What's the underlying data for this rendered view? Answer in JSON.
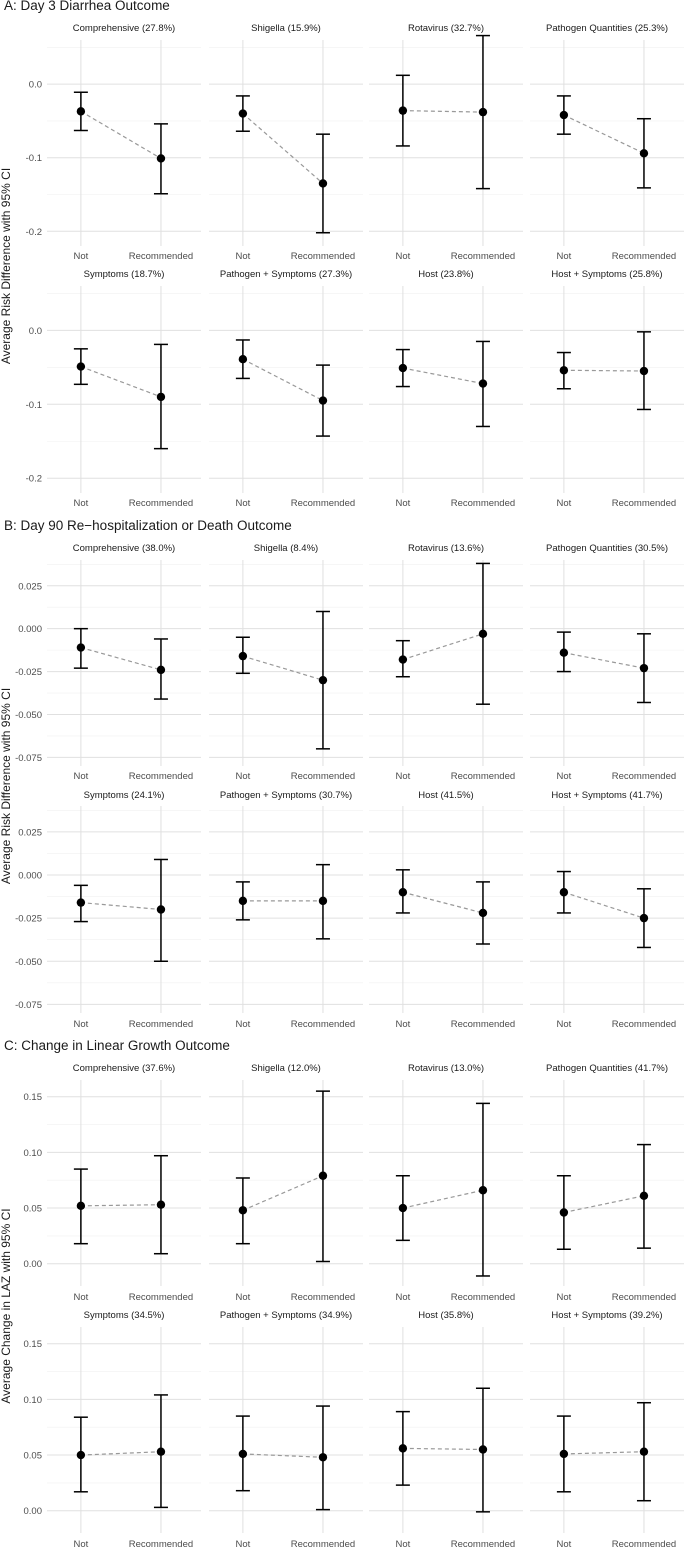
{
  "chart_data": [
    {
      "type": "scatter",
      "title": "A: Day 3 Diarrhea Outcome",
      "ylabel": "Average Risk Difference with 95% CI",
      "categories": [
        "Not",
        "Recommended"
      ],
      "ylim": [
        -0.22,
        0.06
      ],
      "yticks": [
        0.0,
        -0.1,
        -0.2
      ],
      "ytick_labels": [
        "0.0",
        "-0.1",
        "-0.2"
      ],
      "grid": true,
      "panels": [
        {
          "title": "Comprehensive (27.8%)",
          "points": [
            {
              "y": -0.037,
              "lo": -0.063,
              "hi": -0.011
            },
            {
              "y": -0.101,
              "lo": -0.149,
              "hi": -0.054
            }
          ]
        },
        {
          "title": "Shigella (15.9%)",
          "points": [
            {
              "y": -0.04,
              "lo": -0.064,
              "hi": -0.016
            },
            {
              "y": -0.135,
              "lo": -0.202,
              "hi": -0.068
            }
          ]
        },
        {
          "title": "Rotavirus (32.7%)",
          "points": [
            {
              "y": -0.036,
              "lo": -0.084,
              "hi": 0.012
            },
            {
              "y": -0.038,
              "lo": -0.142,
              "hi": 0.066
            }
          ]
        },
        {
          "title": "Pathogen Quantities (25.3%)",
          "points": [
            {
              "y": -0.042,
              "lo": -0.068,
              "hi": -0.016
            },
            {
              "y": -0.094,
              "lo": -0.141,
              "hi": -0.047
            }
          ]
        },
        {
          "title": "Symptoms (18.7%)",
          "points": [
            {
              "y": -0.049,
              "lo": -0.073,
              "hi": -0.025
            },
            {
              "y": -0.09,
              "lo": -0.16,
              "hi": -0.019
            }
          ]
        },
        {
          "title": "Pathogen + Symptoms (27.3%)",
          "points": [
            {
              "y": -0.039,
              "lo": -0.065,
              "hi": -0.013
            },
            {
              "y": -0.095,
              "lo": -0.143,
              "hi": -0.047
            }
          ]
        },
        {
          "title": "Host (23.8%)",
          "points": [
            {
              "y": -0.051,
              "lo": -0.076,
              "hi": -0.026
            },
            {
              "y": -0.072,
              "lo": -0.13,
              "hi": -0.015
            }
          ]
        },
        {
          "title": "Host + Symptoms (25.8%)",
          "points": [
            {
              "y": -0.054,
              "lo": -0.079,
              "hi": -0.03
            },
            {
              "y": -0.055,
              "lo": -0.107,
              "hi": -0.002
            }
          ]
        }
      ]
    },
    {
      "type": "scatter",
      "title": "B: Day 90 Re−hospitalization or Death Outcome",
      "ylabel": "Average Risk Difference with 95% CI",
      "categories": [
        "Not",
        "Recommended"
      ],
      "ylim": [
        -0.08,
        0.04
      ],
      "yticks": [
        0.025,
        0.0,
        -0.025,
        -0.05,
        -0.075
      ],
      "ytick_labels": [
        "0.025",
        "0.000",
        "-0.025",
        "-0.050",
        "-0.075"
      ],
      "grid": true,
      "panels": [
        {
          "title": "Comprehensive (38.0%)",
          "points": [
            {
              "y": -0.011,
              "lo": -0.023,
              "hi": 0.0
            },
            {
              "y": -0.024,
              "lo": -0.041,
              "hi": -0.006
            }
          ]
        },
        {
          "title": "Shigella (8.4%)",
          "points": [
            {
              "y": -0.016,
              "lo": -0.026,
              "hi": -0.005
            },
            {
              "y": -0.03,
              "lo": -0.07,
              "hi": 0.01
            }
          ]
        },
        {
          "title": "Rotavirus (13.6%)",
          "points": [
            {
              "y": -0.018,
              "lo": -0.028,
              "hi": -0.007
            },
            {
              "y": -0.003,
              "lo": -0.044,
              "hi": 0.038
            }
          ]
        },
        {
          "title": "Pathogen Quantities (30.5%)",
          "points": [
            {
              "y": -0.014,
              "lo": -0.025,
              "hi": -0.002
            },
            {
              "y": -0.023,
              "lo": -0.043,
              "hi": -0.003
            }
          ]
        },
        {
          "title": "Symptoms (24.1%)",
          "points": [
            {
              "y": -0.016,
              "lo": -0.027,
              "hi": -0.006
            },
            {
              "y": -0.02,
              "lo": -0.05,
              "hi": 0.009
            }
          ]
        },
        {
          "title": "Pathogen + Symptoms (30.7%)",
          "points": [
            {
              "y": -0.015,
              "lo": -0.026,
              "hi": -0.004
            },
            {
              "y": -0.015,
              "lo": -0.037,
              "hi": 0.006
            }
          ]
        },
        {
          "title": "Host (41.5%)",
          "points": [
            {
              "y": -0.01,
              "lo": -0.022,
              "hi": 0.003
            },
            {
              "y": -0.022,
              "lo": -0.04,
              "hi": -0.004
            }
          ]
        },
        {
          "title": "Host + Symptoms (41.7%)",
          "points": [
            {
              "y": -0.01,
              "lo": -0.022,
              "hi": 0.002
            },
            {
              "y": -0.025,
              "lo": -0.042,
              "hi": -0.008
            }
          ]
        }
      ]
    },
    {
      "type": "scatter",
      "title": "C: Change in Linear Growth Outcome",
      "ylabel": "Average Change in LAZ with 95% CI",
      "categories": [
        "Not",
        "Recommended"
      ],
      "ylim": [
        -0.02,
        0.165
      ],
      "yticks": [
        0.15,
        0.1,
        0.05,
        0.0
      ],
      "ytick_labels": [
        "0.15",
        "0.10",
        "0.05",
        "0.00"
      ],
      "grid": true,
      "panels": [
        {
          "title": "Comprehensive (37.6%)",
          "points": [
            {
              "y": 0.052,
              "lo": 0.018,
              "hi": 0.085
            },
            {
              "y": 0.053,
              "lo": 0.009,
              "hi": 0.097
            }
          ]
        },
        {
          "title": "Shigella (12.0%)",
          "points": [
            {
              "y": 0.048,
              "lo": 0.018,
              "hi": 0.077
            },
            {
              "y": 0.079,
              "lo": 0.002,
              "hi": 0.155
            }
          ]
        },
        {
          "title": "Rotavirus (13.0%)",
          "points": [
            {
              "y": 0.05,
              "lo": 0.021,
              "hi": 0.079
            },
            {
              "y": 0.066,
              "lo": -0.011,
              "hi": 0.144
            }
          ]
        },
        {
          "title": "Pathogen Quantities (41.7%)",
          "points": [
            {
              "y": 0.046,
              "lo": 0.013,
              "hi": 0.079
            },
            {
              "y": 0.061,
              "lo": 0.014,
              "hi": 0.107
            }
          ]
        },
        {
          "title": "Symptoms (34.5%)",
          "points": [
            {
              "y": 0.05,
              "lo": 0.017,
              "hi": 0.084
            },
            {
              "y": 0.053,
              "lo": 0.003,
              "hi": 0.104
            }
          ]
        },
        {
          "title": "Pathogen + Symptoms (34.9%)",
          "points": [
            {
              "y": 0.051,
              "lo": 0.018,
              "hi": 0.085
            },
            {
              "y": 0.048,
              "lo": 0.001,
              "hi": 0.094
            }
          ]
        },
        {
          "title": "Host (35.8%)",
          "points": [
            {
              "y": 0.056,
              "lo": 0.023,
              "hi": 0.089
            },
            {
              "y": 0.055,
              "lo": -0.001,
              "hi": 0.11
            }
          ]
        },
        {
          "title": "Host + Symptoms (39.2%)",
          "points": [
            {
              "y": 0.051,
              "lo": 0.017,
              "hi": 0.085
            },
            {
              "y": 0.053,
              "lo": 0.009,
              "hi": 0.097
            }
          ]
        }
      ]
    }
  ]
}
